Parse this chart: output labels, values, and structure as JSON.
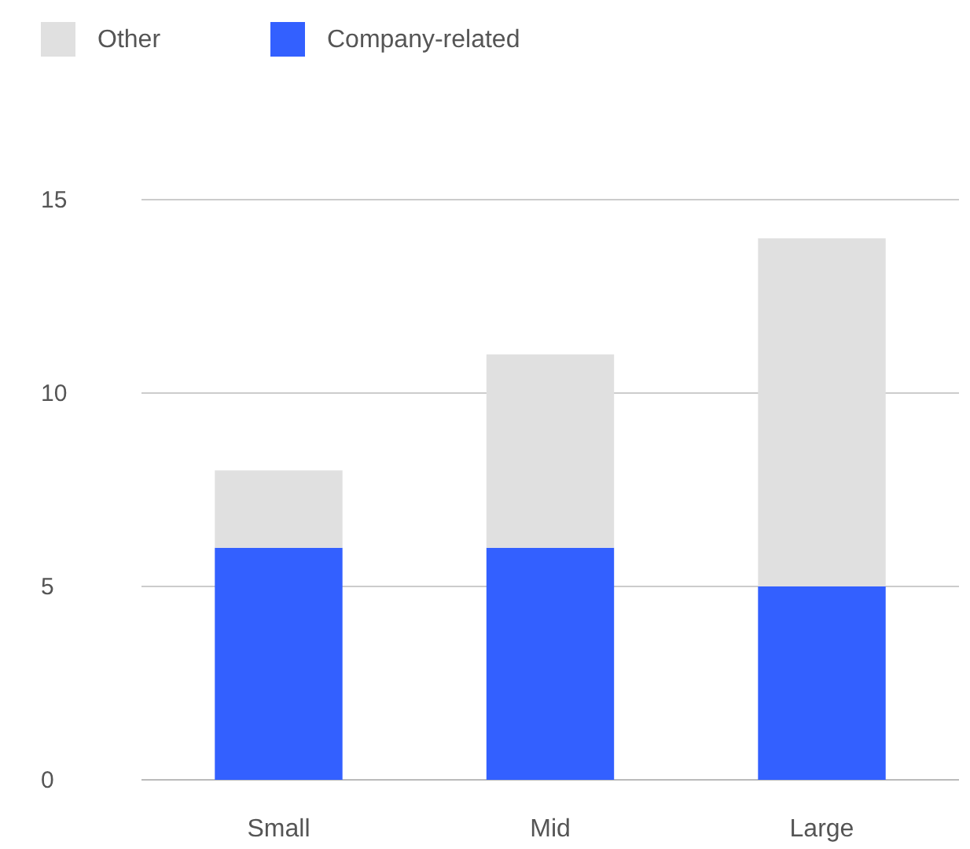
{
  "chart_data": {
    "type": "bar",
    "stacked": true,
    "categories": [
      "Small",
      "Mid",
      "Large"
    ],
    "series": [
      {
        "name": "Company-related",
        "color": "#3360ff",
        "values": [
          6,
          6,
          5
        ]
      },
      {
        "name": "Other",
        "color": "#e0e0e0",
        "values": [
          2,
          5,
          9
        ]
      }
    ],
    "ylim": [
      0,
      15
    ],
    "yticks": [
      0,
      5,
      10,
      15
    ],
    "grid": "y",
    "legend": "top left"
  }
}
